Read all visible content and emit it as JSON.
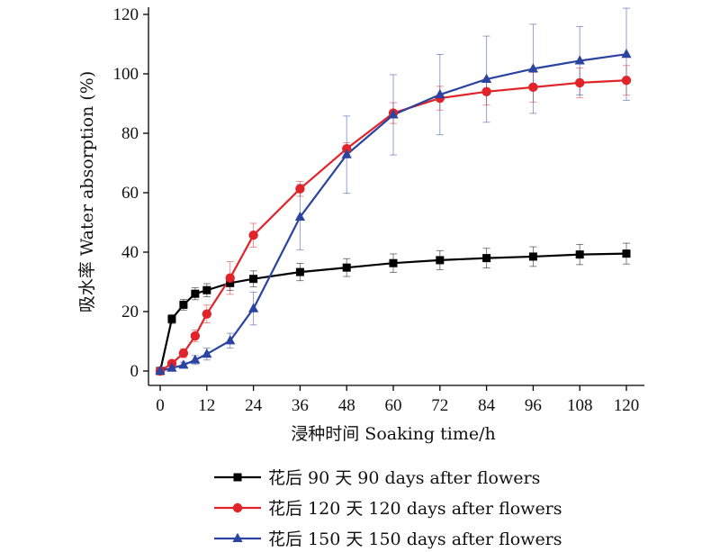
{
  "chart_data": {
    "type": "line",
    "title": "",
    "xlabel": "浸种时间 Soaking time/h",
    "ylabel": "吸水率 Water absorption (%)",
    "xlim": [
      0,
      120
    ],
    "ylim": [
      0,
      120
    ],
    "xticks": [
      0,
      12,
      24,
      36,
      48,
      60,
      72,
      84,
      96,
      108,
      120
    ],
    "yticks": [
      0,
      20,
      40,
      60,
      80,
      100,
      120
    ],
    "grid": false,
    "legend_position": "bottom",
    "series": [
      {
        "name": "花后 90 天 90 days after flowers",
        "color": "#000000",
        "marker": "square",
        "x": [
          0,
          3,
          6,
          9,
          12,
          18,
          24,
          36,
          48,
          60,
          72,
          84,
          96,
          108,
          120
        ],
        "values": [
          0,
          17.5,
          22.3,
          26.0,
          27.2,
          29.6,
          31.0,
          33.3,
          34.8,
          36.3,
          37.3,
          38.0,
          38.5,
          39.2,
          39.5
        ],
        "errors": [
          0,
          1.5,
          1.8,
          2.0,
          2.2,
          2.5,
          2.7,
          2.9,
          3.0,
          3.1,
          3.2,
          3.3,
          3.3,
          3.4,
          3.5
        ]
      },
      {
        "name": "花后 120 天 120 days after flowers",
        "color": "#e0242a",
        "marker": "circle",
        "x": [
          0,
          3,
          6,
          9,
          12,
          18,
          24,
          36,
          48,
          60,
          72,
          84,
          96,
          108,
          120
        ],
        "values": [
          0,
          2.5,
          6.0,
          11.8,
          19.2,
          31.3,
          45.7,
          61.3,
          74.8,
          86.8,
          91.8,
          94.0,
          95.5,
          97.0,
          97.8
        ],
        "errors": [
          0,
          1.0,
          1.5,
          2.0,
          3.0,
          5.5,
          4.0,
          2.5,
          2.0,
          3.5,
          4.0,
          4.5,
          5.0,
          5.0,
          5.0
        ]
      },
      {
        "name": "花后 150 天 150 days after flowers",
        "color": "#2a44a0",
        "marker": "triangle",
        "x": [
          0,
          3,
          6,
          9,
          12,
          18,
          24,
          36,
          48,
          60,
          72,
          84,
          96,
          108,
          120
        ],
        "values": [
          0,
          1.0,
          2.0,
          3.7,
          5.7,
          10.2,
          21.0,
          51.8,
          72.8,
          86.2,
          93.0,
          98.2,
          101.7,
          104.4,
          106.6
        ],
        "errors": [
          0,
          1.0,
          1.0,
          1.5,
          2.0,
          2.5,
          5.5,
          11.0,
          13.0,
          13.5,
          13.5,
          14.5,
          15.0,
          11.5,
          15.5
        ]
      }
    ]
  }
}
